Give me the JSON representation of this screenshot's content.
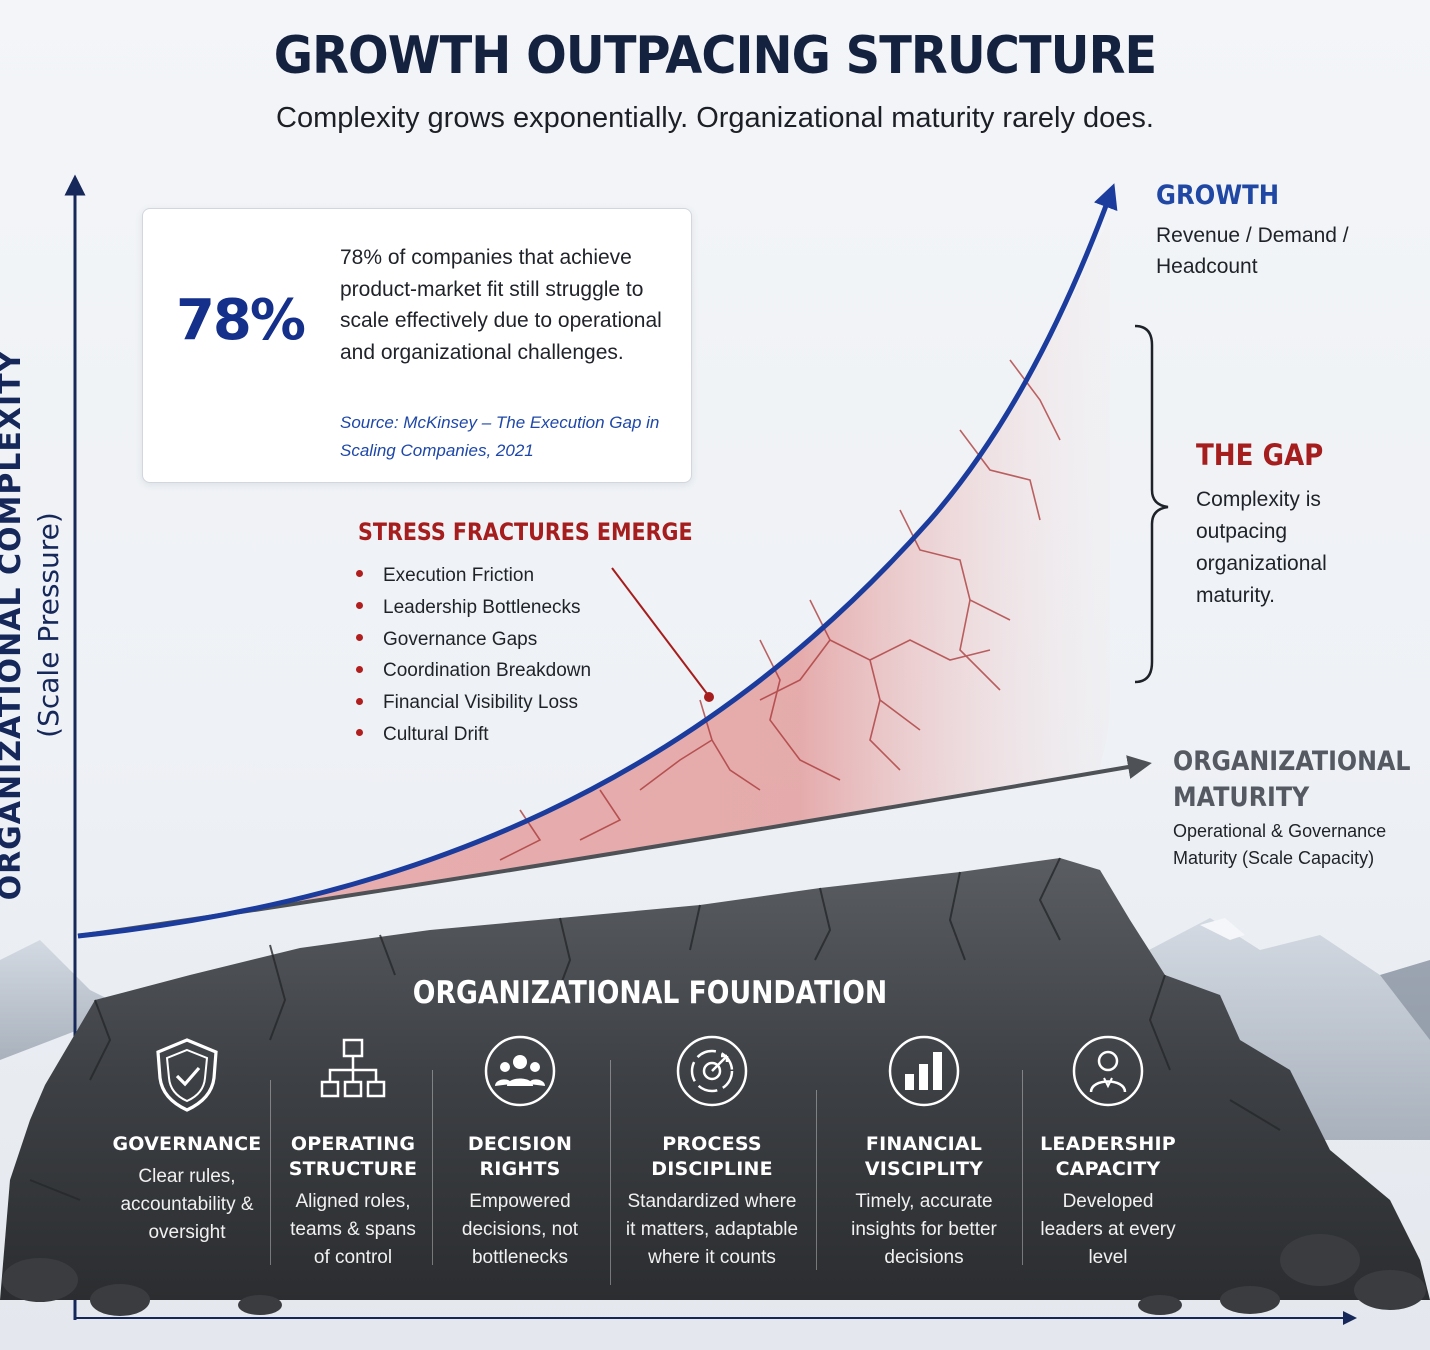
{
  "header": {
    "title": "GROWTH OUTPACING STRUCTURE",
    "subtitle": "Complexity grows exponentially. Organizational maturity rarely does."
  },
  "y_axis": {
    "title": "ORGANIZATIONAL COMPLEXITY",
    "subtitle": "(Scale Pressure)"
  },
  "stat_card": {
    "percent_label": "78%",
    "percent_value": 0.78,
    "text": "78% of companies that achieve product-market fit still struggle to scale effectively due to operational and organizational challenges.",
    "source": "Source: McKinsey – The Execution Gap in Scaling Companies, 2021",
    "ring_color": "#1b3c9c",
    "ring_remainder_color": "#8eaad8"
  },
  "stress": {
    "title": "STRESS FRACTURES EMERGE",
    "items": [
      "Execution Friction",
      "Leadership Bottlenecks",
      "Governance Gaps",
      "Coordination Breakdown",
      "Financial Visibility Loss",
      "Cultural Drift"
    ]
  },
  "growth": {
    "label": "GROWTH",
    "sub": "Revenue / Demand / Headcount",
    "color": "#1b3c9c"
  },
  "gap": {
    "label": "THE GAP",
    "sub": "Complexity is outpacing organizational maturity.",
    "color": "#a51d1d"
  },
  "maturity": {
    "label": "ORGANIZATIONAL MATURITY",
    "sub": "Operational & Governance Maturity (Scale Capacity)",
    "color": "#555a62"
  },
  "foundation": {
    "title": "ORGANIZATIONAL FOUNDATION",
    "pillars": [
      {
        "name": "GOVERNANCE",
        "desc": "Clear rules, accountability & oversight",
        "icon": "shield-check-icon"
      },
      {
        "name": "OPERATING STRUCTURE",
        "desc": "Aligned roles, teams & spans of control",
        "icon": "org-chart-icon"
      },
      {
        "name": "DECISION RIGHTS",
        "desc": "Empowered decisions, not bottlenecks",
        "icon": "people-group-icon"
      },
      {
        "name": "PROCESS DISCIPLINE",
        "desc": "Standardized where it matters, adaptable where it counts",
        "icon": "target-cycle-icon"
      },
      {
        "name": "FINANCIAL VISCIPLITY",
        "desc": "Timely, accurate insights for better decisions",
        "icon": "bar-chart-icon"
      },
      {
        "name": "LEADERSHIP CAPACITY",
        "desc": "Developed leaders at every level",
        "icon": "leader-icon"
      }
    ]
  }
}
